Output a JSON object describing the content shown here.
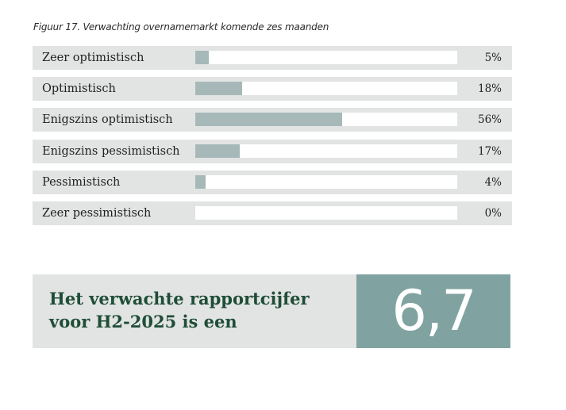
{
  "caption": "Figuur 17. Verwachting overnamemarkt komende zes maanden",
  "chart_data": {
    "type": "bar",
    "orientation": "horizontal",
    "title": "Figuur 17. Verwachting overnamemarkt komende zes maanden",
    "categories": [
      "Zeer optimistisch",
      "Optimistisch",
      "Enigszins optimistisch",
      "Enigszins pessimistisch",
      "Pessimistisch",
      "Zeer pessimistisch"
    ],
    "values": [
      5,
      18,
      56,
      17,
      4,
      0
    ],
    "value_labels": [
      "5%",
      "18%",
      "56%",
      "17%",
      "4%",
      "0%"
    ],
    "xlim": [
      0,
      100
    ],
    "unit": "%",
    "bar_color": "#a6b9b8"
  },
  "score": {
    "text_line1": "Het verwachte rapportcijfer",
    "text_line2": "voor H2-2025 is een",
    "value": "6,7"
  },
  "colors": {
    "row_bg": "#e2e4e3",
    "track": "#ffffff",
    "bar": "#a6b9b8",
    "score_panel": "#80a3a1",
    "score_text": "#1f4d38"
  }
}
